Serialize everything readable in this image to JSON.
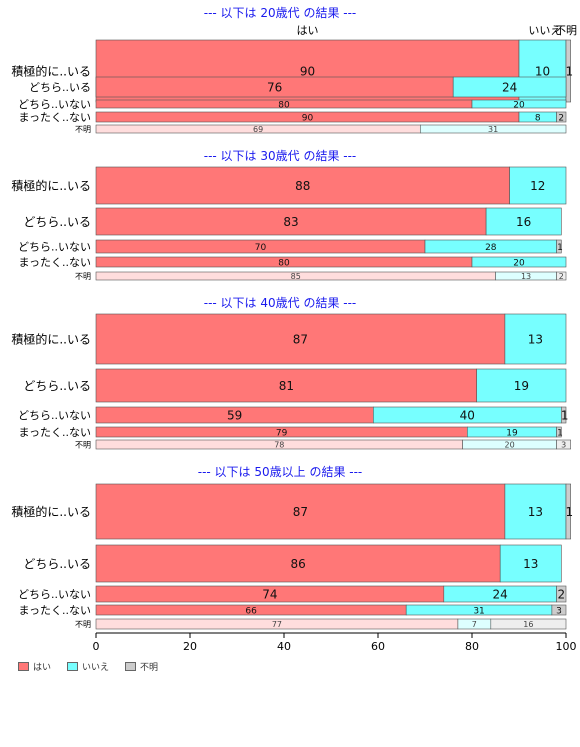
{
  "chart_data": {
    "type": "bar",
    "orientation": "horizontal",
    "stacked": true,
    "xlim": [
      0,
      100
    ],
    "xticks": [
      0,
      20,
      40,
      60,
      80,
      100
    ],
    "column_headers": [
      "はい",
      "いいえ",
      "不明"
    ],
    "series": [
      {
        "name": "はい",
        "color": "#ff7777"
      },
      {
        "name": "いいえ",
        "color": "#77ffff"
      },
      {
        "name": "不明",
        "color": "#cccccc"
      }
    ],
    "groups": [
      {
        "title": "--- 以下は 20歳代 の結果 ---",
        "rows": [
          {
            "label": "積極的に..いる",
            "values": [
              90,
              10,
              1
            ]
          },
          {
            "label": "どちら..いる",
            "values": [
              76,
              24,
              0
            ]
          },
          {
            "label": "どちら..いない",
            "values": [
              80,
              20,
              0
            ]
          },
          {
            "label": "まったく..ない",
            "values": [
              90,
              8,
              2
            ]
          },
          {
            "label": "不明",
            "values": [
              69,
              31,
              0
            ]
          }
        ]
      },
      {
        "title": "--- 以下は 30歳代 の結果 ---",
        "rows": [
          {
            "label": "積極的に..いる",
            "values": [
              88,
              12,
              0
            ]
          },
          {
            "label": "どちら..いる",
            "values": [
              83,
              16,
              0
            ]
          },
          {
            "label": "どちら..いない",
            "values": [
              70,
              28,
              1
            ]
          },
          {
            "label": "まったく..ない",
            "values": [
              80,
              20,
              0
            ]
          },
          {
            "label": "不明",
            "values": [
              85,
              13,
              2
            ]
          }
        ]
      },
      {
        "title": "--- 以下は 40歳代 の結果 ---",
        "rows": [
          {
            "label": "積極的に..いる",
            "values": [
              87,
              13,
              0
            ]
          },
          {
            "label": "どちら..いる",
            "values": [
              81,
              19,
              0
            ]
          },
          {
            "label": "どちら..いない",
            "values": [
              59,
              40,
              1
            ]
          },
          {
            "label": "まったく..ない",
            "values": [
              79,
              19,
              1
            ]
          },
          {
            "label": "不明",
            "values": [
              78,
              20,
              3
            ]
          }
        ]
      },
      {
        "title": "--- 以下は 50歳以上 の結果 ---",
        "rows": [
          {
            "label": "積極的に..いる",
            "values": [
              87,
              13,
              1
            ]
          },
          {
            "label": "どちら..いる",
            "values": [
              86,
              13,
              0
            ]
          },
          {
            "label": "どちら..いない",
            "values": [
              74,
              24,
              2
            ]
          },
          {
            "label": "まったく..ない",
            "values": [
              66,
              31,
              3
            ]
          },
          {
            "label": "不明",
            "values": [
              77,
              7,
              16
            ]
          }
        ]
      }
    ],
    "legend": [
      "はい",
      "いいえ",
      "不明"
    ],
    "legend_position": "bottom-left"
  }
}
